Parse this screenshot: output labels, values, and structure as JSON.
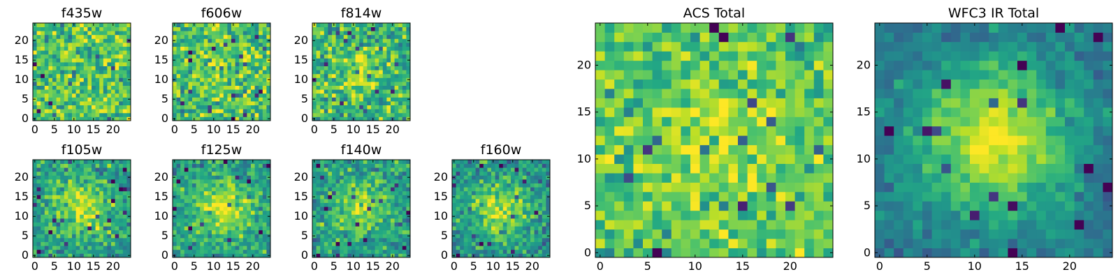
{
  "chart_data": [
    {
      "type": "heatmap",
      "title": "f435w",
      "size": 25,
      "colormap": "viridis",
      "xticks": [
        0,
        5,
        10,
        15,
        20
      ],
      "yticks": [
        0,
        5,
        10,
        15,
        20
      ],
      "xlim": [
        0,
        25
      ],
      "ylim": [
        0,
        25
      ],
      "seed": 11,
      "noise": 0.55,
      "signal": 0.0,
      "sigma": 4,
      "contrast": 1.0,
      "offset": 0.72
    },
    {
      "type": "heatmap",
      "title": "f606w",
      "size": 25,
      "colormap": "viridis",
      "xticks": [
        0,
        5,
        10,
        15,
        20
      ],
      "yticks": [
        0,
        5,
        10,
        15,
        20
      ],
      "xlim": [
        0,
        25
      ],
      "ylim": [
        0,
        25
      ],
      "seed": 23,
      "noise": 0.55,
      "signal": 0.12,
      "sigma": 4,
      "contrast": 1.0,
      "offset": 0.7
    },
    {
      "type": "heatmap",
      "title": "f814w",
      "size": 25,
      "colormap": "viridis",
      "xticks": [
        0,
        5,
        10,
        15,
        20
      ],
      "yticks": [
        0,
        5,
        10,
        15,
        20
      ],
      "xlim": [
        0,
        25
      ],
      "ylim": [
        0,
        25
      ],
      "seed": 37,
      "noise": 0.55,
      "signal": 0.22,
      "sigma": 4,
      "contrast": 1.0,
      "offset": 0.66
    },
    {
      "type": "heatmap",
      "title": "f105w",
      "size": 25,
      "colormap": "viridis",
      "xticks": [
        0,
        5,
        10,
        15,
        20
      ],
      "yticks": [
        0,
        5,
        10,
        15,
        20
      ],
      "xlim": [
        0,
        25
      ],
      "ylim": [
        0,
        25
      ],
      "seed": 41,
      "noise": 0.45,
      "signal": 0.35,
      "sigma": 5,
      "contrast": 1.0,
      "offset": 0.55
    },
    {
      "type": "heatmap",
      "title": "f125w",
      "size": 25,
      "colormap": "viridis",
      "xticks": [
        0,
        5,
        10,
        15,
        20
      ],
      "yticks": [
        0,
        5,
        10,
        15,
        20
      ],
      "xlim": [
        0,
        25
      ],
      "ylim": [
        0,
        25
      ],
      "seed": 53,
      "noise": 0.42,
      "signal": 0.35,
      "sigma": 5,
      "contrast": 1.0,
      "offset": 0.57
    },
    {
      "type": "heatmap",
      "title": "f140w",
      "size": 25,
      "colormap": "viridis",
      "xticks": [
        0,
        5,
        10,
        15,
        20
      ],
      "yticks": [
        0,
        5,
        10,
        15,
        20
      ],
      "xlim": [
        0,
        25
      ],
      "ylim": [
        0,
        25
      ],
      "seed": 67,
      "noise": 0.45,
      "signal": 0.32,
      "sigma": 5,
      "contrast": 1.0,
      "offset": 0.55
    },
    {
      "type": "heatmap",
      "title": "f160w",
      "size": 25,
      "colormap": "viridis",
      "xticks": [
        0,
        5,
        10,
        15,
        20
      ],
      "yticks": [
        0,
        5,
        10,
        15,
        20
      ],
      "xlim": [
        0,
        25
      ],
      "ylim": [
        0,
        25
      ],
      "seed": 79,
      "noise": 0.45,
      "signal": 0.35,
      "sigma": 5,
      "contrast": 1.0,
      "offset": 0.52
    },
    {
      "type": "heatmap",
      "title": "ACS Total",
      "size": 25,
      "colormap": "viridis",
      "xticks": [
        0,
        5,
        10,
        15,
        20
      ],
      "yticks": [
        0,
        5,
        10,
        15,
        20
      ],
      "xlim": [
        0,
        25
      ],
      "ylim": [
        0,
        25
      ],
      "seed": 97,
      "noise": 0.45,
      "signal": 0.15,
      "sigma": 5,
      "contrast": 1.0,
      "offset": 0.72
    },
    {
      "type": "heatmap",
      "title": "WFC3 IR Total",
      "size": 25,
      "colormap": "viridis",
      "xticks": [
        0,
        5,
        10,
        15,
        20
      ],
      "yticks": [
        0,
        5,
        10,
        15,
        20
      ],
      "xlim": [
        0,
        25
      ],
      "ylim": [
        0,
        25
      ],
      "seed": 131,
      "noise": 0.25,
      "signal": 0.55,
      "sigma": 6,
      "contrast": 1.0,
      "offset": 0.38
    }
  ]
}
